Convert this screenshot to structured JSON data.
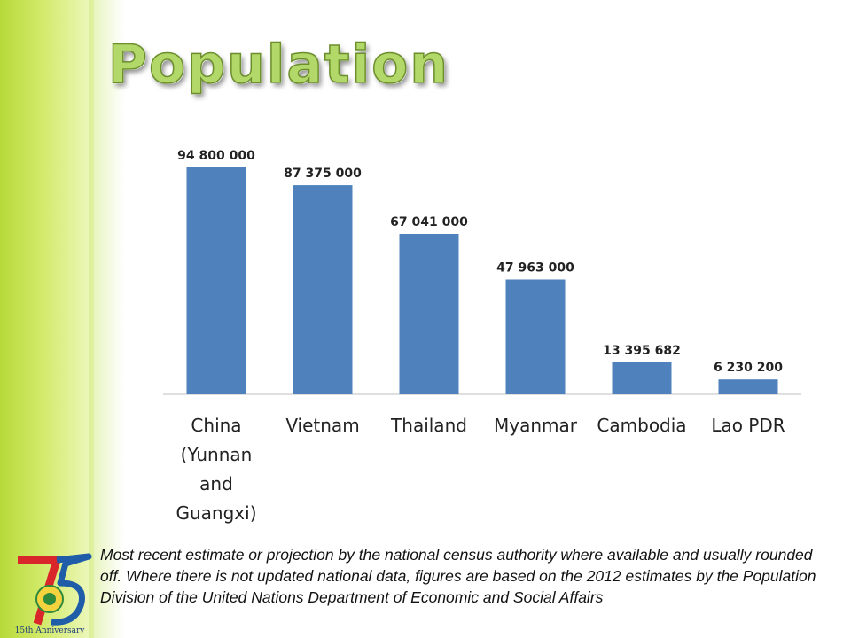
{
  "slide": {
    "title": "Population",
    "footnote": "Most recent estimate or projection by the national census authority where available and usually rounded off. Where there is not updated national data, figures are based on the 2012 estimates by the Population Division of the United Nations Department of Economic and Social Affairs",
    "logo_text": "15th Anniversary"
  },
  "colors": {
    "bar": "#4f81bd",
    "band": "#c8e35a",
    "title": "#b3d86a"
  },
  "chart_data": {
    "type": "bar",
    "categories": [
      [
        "China",
        "(Yunnan",
        "and",
        "Guangxi)"
      ],
      [
        "Vietnam"
      ],
      [
        "Thailand"
      ],
      [
        "Myanmar"
      ],
      [
        "Cambodia"
      ],
      [
        "Lao PDR"
      ]
    ],
    "values": [
      94800000,
      87375000,
      67041000,
      47963000,
      13395682,
      6230200
    ],
    "data_labels": [
      "94 800 000",
      "87 375 000",
      "67 041 000",
      "47 963 000",
      "13 395 682",
      "6 230 200"
    ],
    "ylim": [
      0,
      100000000
    ],
    "grid": false,
    "legend": "none"
  }
}
